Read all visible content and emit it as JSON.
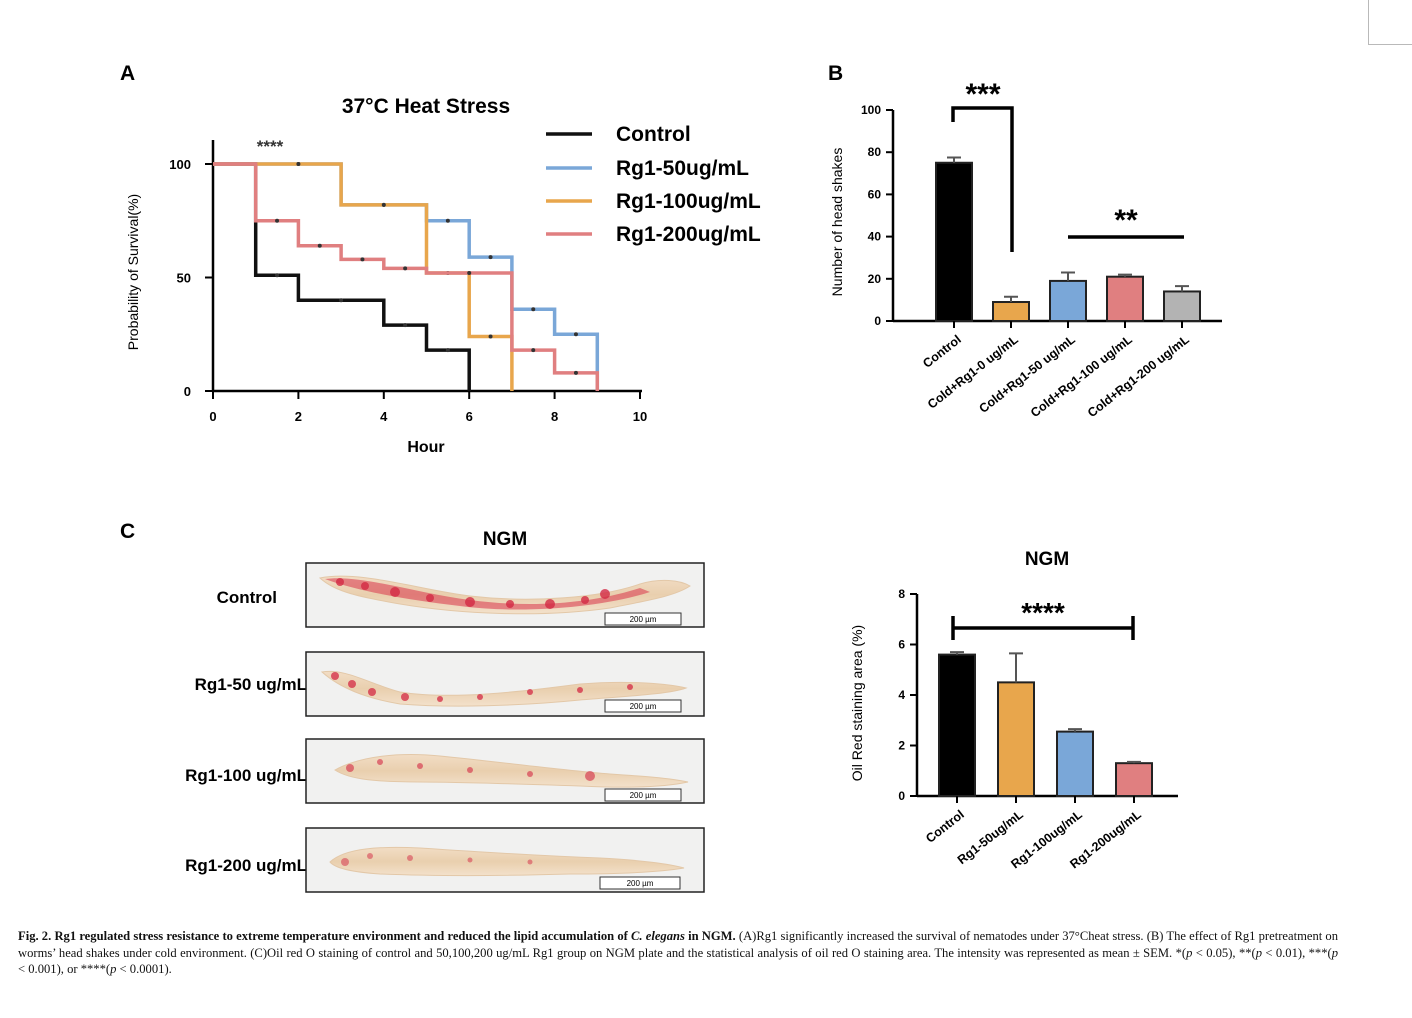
{
  "panelA": {
    "letter": "A",
    "title": "37°C Heat Stress",
    "significance": "****",
    "xlabel": "Hour",
    "ylabel": "Probability of Survival(%)",
    "legend": [
      {
        "label": "Control",
        "color": "#111111"
      },
      {
        "label": "Rg1-50ug/mL",
        "color": "#7aa7d8"
      },
      {
        "label": "Rg1-100ug/mL",
        "color": "#e8a64c"
      },
      {
        "label": "Rg1-200ug/mL",
        "color": "#e07f80"
      }
    ]
  },
  "panelB": {
    "letter": "B",
    "ylabel": "Number of head shakes",
    "sig_left": "***",
    "sig_right": "**"
  },
  "panelC": {
    "letter": "C",
    "micrograph_title": "NGM",
    "chart_title": "NGM",
    "ylabel": "Oil Red staining area (%)",
    "significance": "****",
    "rows": [
      {
        "label": "Control",
        "scale": "200 µm"
      },
      {
        "label": "Rg1-50 ug/mL",
        "scale": "200 µm"
      },
      {
        "label": "Rg1-100 ug/mL",
        "scale": "200 µm"
      },
      {
        "label": "Rg1-200 ug/mL",
        "scale": "200 µm"
      }
    ]
  },
  "chart_data": [
    {
      "type": "line",
      "subtype": "kaplan-meier-step",
      "title": "37°C Heat Stress",
      "xlabel": "Hour",
      "ylabel": "Probability of Survival(%)",
      "xlim": [
        0,
        10
      ],
      "ylim": [
        0,
        100
      ],
      "xticks": [
        0,
        2,
        4,
        6,
        8,
        10
      ],
      "yticks": [
        0,
        50,
        100
      ],
      "xtick_labels": [
        "0",
        "2",
        "4",
        "6",
        "8",
        "10"
      ],
      "ytick_labels": [
        "0",
        "50",
        "100"
      ],
      "series": [
        {
          "name": "Control",
          "color": "#111111",
          "x": [
            0,
            1,
            2,
            4,
            5,
            6
          ],
          "y": [
            100,
            51,
            40,
            29,
            18,
            0
          ]
        },
        {
          "name": "Rg1-50ug/mL",
          "color": "#7aa7d8",
          "x": [
            0,
            1,
            3,
            5,
            6,
            7,
            8,
            9
          ],
          "y": [
            100,
            100,
            82,
            75,
            59,
            36,
            25,
            0
          ]
        },
        {
          "name": "Rg1-100ug/mL",
          "color": "#e8a64c",
          "x": [
            0,
            1,
            3,
            5,
            6,
            7
          ],
          "y": [
            100,
            100,
            82,
            52,
            24,
            0
          ]
        },
        {
          "name": "Rg1-200ug/mL",
          "color": "#e07f80",
          "x": [
            0,
            1,
            2,
            3,
            4,
            5,
            7,
            8,
            9
          ],
          "y": [
            100,
            75,
            64,
            58,
            54,
            52,
            18,
            8,
            0
          ]
        }
      ]
    },
    {
      "type": "bar",
      "ylabel": "Number of head shakes",
      "ylim": [
        0,
        100
      ],
      "yticks": [
        0,
        20,
        40,
        60,
        80,
        100
      ],
      "ytick_labels": [
        "0",
        "20",
        "40",
        "60",
        "80",
        "100"
      ],
      "categories": [
        "Control",
        "Cold+Rg1-0 ug/mL",
        "Cold+Rg1-50 ug/mL",
        "Cold+Rg1-100 ug/mL",
        "Cold+Rg1-200 ug/mL"
      ],
      "values": [
        75,
        9,
        19,
        21,
        14
      ],
      "errors": [
        2.5,
        2.5,
        4,
        1,
        2.5
      ],
      "colors": [
        "#000000",
        "#e8a64c",
        "#7aa7d8",
        "#e07f80",
        "#b3b3b3"
      ],
      "annotations": [
        {
          "text": "***",
          "between": [
            0,
            1
          ]
        },
        {
          "text": "**",
          "span": [
            2,
            4
          ]
        }
      ]
    },
    {
      "type": "bar",
      "title": "NGM",
      "ylabel": "Oil Red staining area (%)",
      "ylim": [
        0,
        8
      ],
      "yticks": [
        0,
        2,
        4,
        6,
        8
      ],
      "ytick_labels": [
        "0",
        "2",
        "4",
        "6",
        "8"
      ],
      "categories": [
        "Control",
        "Rg1-50ug/mL",
        "Rg1-100ug/mL",
        "Rg1-200ug/mL"
      ],
      "values": [
        5.6,
        4.5,
        2.55,
        1.3
      ],
      "errors": [
        0.1,
        1.15,
        0.1,
        0.05
      ],
      "colors": [
        "#000000",
        "#e8a64c",
        "#7aa7d8",
        "#e07f80"
      ],
      "annotations": [
        {
          "text": "****",
          "span": [
            0,
            3
          ]
        }
      ]
    }
  ],
  "caption": {
    "label": "Fig. 2.",
    "bold_title_pre": "Rg1 regulated stress resistance to extreme temperature environment and reduced the lipid accumulation of ",
    "species": "C. elegans",
    "bold_title_post": " in NGM.",
    "text_1": " (A)Rg1 significantly increased the survival of nematodes under 37°Cheat stress. (B) The effect of Rg1 pretreatment on worms’ head shakes under cold environment. (C)Oil red O staining of control and 50,100,200 ug/mL Rg1 group on NGM plate and the statistical analysis of oil red O staining area. The intensity was represented as mean ± SEM. *(",
    "p1": "p",
    "text_2": " < 0.05), **(",
    "p2": "p",
    "text_3": " < 0.01), ***(",
    "p3": "p",
    "text_4": " < 0.001), or ****(",
    "p4": "p",
    "text_5": " < 0.0001)."
  }
}
